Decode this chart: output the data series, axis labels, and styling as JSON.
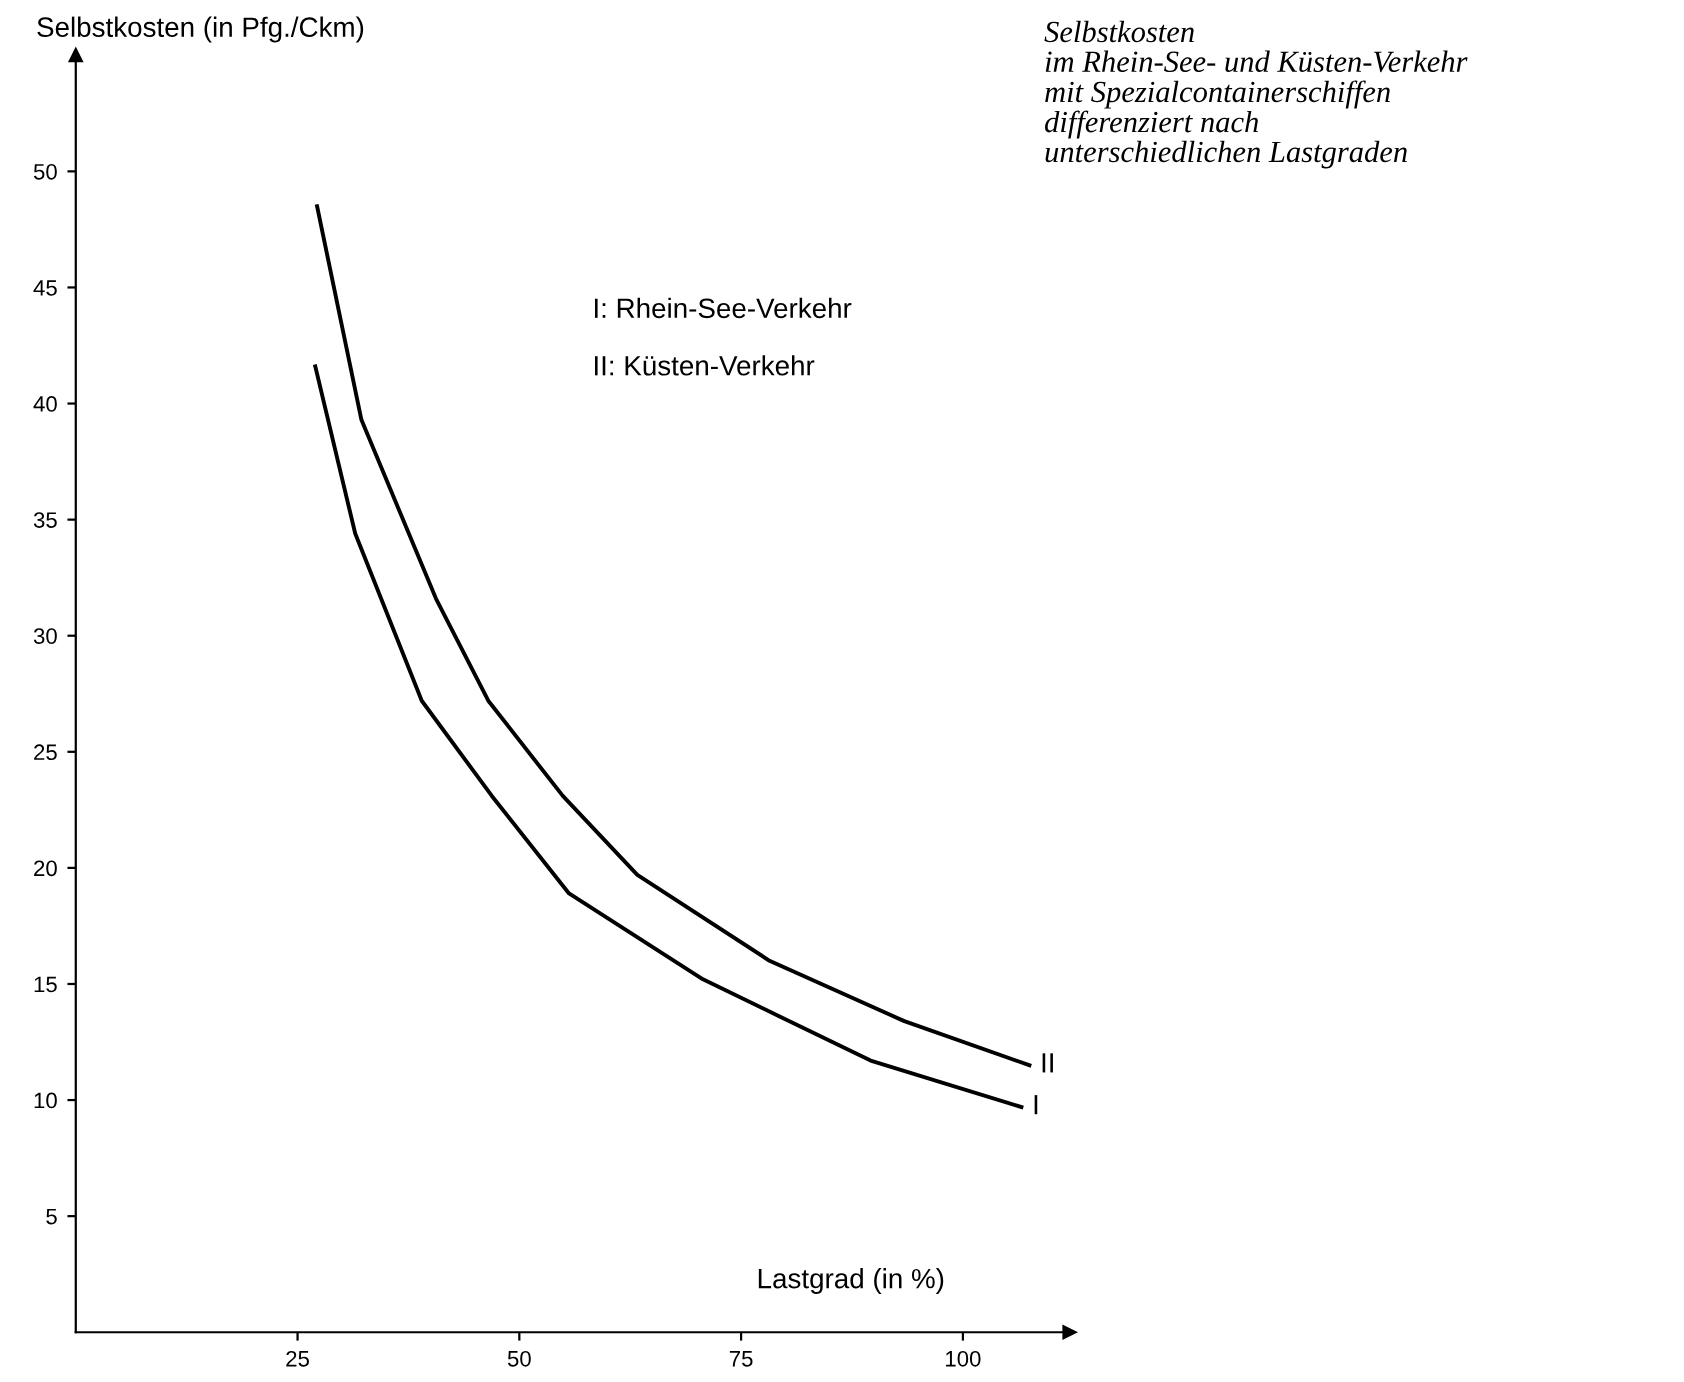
{
  "chart_data": {
    "type": "line",
    "title": "Selbstkosten\nim Rhein-See- und Küsten-Verkehr\nmit Spezialcontainerschiffen\ndifferenziert nach\nunterschiedlichen Lastgraden",
    "xlabel": "Lastgrad (in %)",
    "ylabel": "Selbstkosten (in Pfg./Ckm)",
    "annotations": [
      "I: Rhein-See-Verkehr",
      "II: Küsten-Verkehr"
    ],
    "series": [
      {
        "name": "I",
        "color": "#000000",
        "x": [
          27,
          31.5,
          39,
          46.9,
          55.6,
          70.7,
          89.6,
          106.6
        ],
        "values": [
          41.6,
          34.4,
          27.2,
          23.1,
          18.9,
          15.2,
          11.7,
          9.7
        ]
      },
      {
        "name": "II",
        "color": "#000000",
        "x": [
          27.2,
          32.2,
          40.6,
          46.5,
          54.9,
          63.3,
          78.2,
          93.4,
          107.5
        ],
        "values": [
          48.5,
          39.3,
          31.6,
          27.2,
          23.1,
          19.7,
          16.0,
          13.4,
          11.5
        ]
      }
    ],
    "xlim": [
      0,
      112
    ],
    "ylim": [
      0,
      55
    ],
    "xticks": [
      25,
      50,
      75,
      100
    ],
    "yticks": [
      5,
      10,
      15,
      20,
      25,
      30,
      35,
      40,
      45,
      50
    ],
    "grid": false,
    "legend": false,
    "marker": "none",
    "line_style": "solid"
  }
}
